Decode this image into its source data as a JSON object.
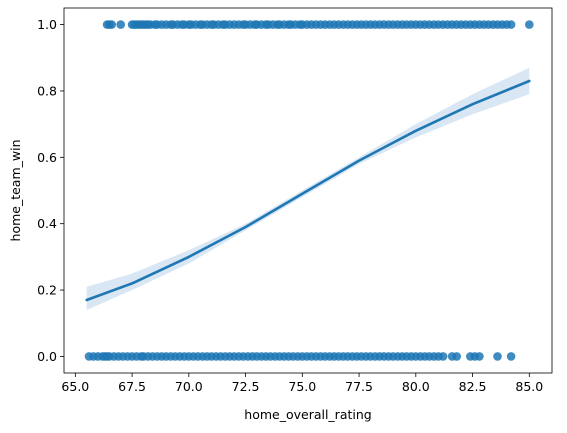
{
  "chart_data": {
    "type": "scatter",
    "title": "",
    "xlabel": "home_overall_rating",
    "ylabel": "home_team_win",
    "xlim": [
      64.5,
      86.0
    ],
    "ylim": [
      -0.05,
      1.05
    ],
    "x_ticks": [
      {
        "value": 65.0,
        "label": "65.0"
      },
      {
        "value": 67.5,
        "label": "67.5"
      },
      {
        "value": 70.0,
        "label": "70.0"
      },
      {
        "value": 72.5,
        "label": "72.5"
      },
      {
        "value": 75.0,
        "label": "75.0"
      },
      {
        "value": 77.5,
        "label": "77.5"
      },
      {
        "value": 80.0,
        "label": "80.0"
      },
      {
        "value": 82.5,
        "label": "82.5"
      },
      {
        "value": 85.0,
        "label": "85.0"
      }
    ],
    "y_ticks": [
      {
        "value": 0.0,
        "label": "0.0"
      },
      {
        "value": 0.2,
        "label": "0.2"
      },
      {
        "value": 0.4,
        "label": "0.4"
      },
      {
        "value": 0.6,
        "label": "0.6"
      },
      {
        "value": 0.8,
        "label": "0.8"
      },
      {
        "value": 1.0,
        "label": "1.0"
      }
    ],
    "grid": false,
    "legend": "none",
    "colors": {
      "points": "#1f77b4",
      "fit_line": "#1f77b4",
      "ci_band": "#cfe0f1"
    },
    "series": [
      {
        "kind": "points",
        "y": 1,
        "x": [
          66.4,
          66.5,
          66.6,
          67.0,
          67.5,
          67.6,
          67.7,
          67.8,
          67.9,
          68.0,
          68.1,
          68.2,
          68.3,
          68.5,
          68.6,
          68.8,
          69.0,
          69.2,
          69.3,
          69.5,
          69.7,
          69.8,
          70.0,
          70.1,
          70.3,
          70.5,
          70.6,
          70.8,
          71.0,
          71.1,
          71.3,
          71.5,
          71.6,
          71.8,
          72.0,
          72.2,
          72.4,
          72.5,
          72.7,
          72.9,
          73.0,
          73.2,
          73.4,
          73.5,
          73.7,
          73.9,
          74.0,
          74.2,
          74.4,
          74.5,
          74.7,
          74.9,
          75.0,
          75.2,
          75.4,
          75.6,
          75.8,
          76.0,
          76.2,
          76.4,
          76.6,
          76.8,
          77.0,
          77.2,
          77.4,
          77.6,
          77.8,
          78.0,
          78.2,
          78.4,
          78.6,
          78.8,
          79.0,
          79.2,
          79.4,
          79.6,
          79.8,
          80.0,
          80.2,
          80.4,
          80.6,
          80.8,
          81.0,
          81.2,
          81.4,
          81.6,
          81.8,
          82.0,
          82.2,
          82.4,
          82.6,
          82.8,
          83.0,
          83.2,
          83.4,
          83.6,
          83.8,
          84.0,
          84.2,
          85.0
        ]
      },
      {
        "kind": "points",
        "y": 0,
        "x": [
          65.6,
          65.8,
          66.0,
          66.2,
          66.3,
          66.4,
          66.5,
          66.7,
          66.9,
          67.1,
          67.3,
          67.5,
          67.7,
          67.9,
          68.0,
          68.2,
          68.4,
          68.6,
          68.8,
          69.0,
          69.2,
          69.4,
          69.6,
          69.8,
          70.0,
          70.2,
          70.4,
          70.6,
          70.8,
          71.0,
          71.2,
          71.4,
          71.6,
          71.8,
          72.0,
          72.2,
          72.4,
          72.6,
          72.8,
          73.0,
          73.2,
          73.4,
          73.6,
          73.8,
          74.0,
          74.2,
          74.4,
          74.6,
          74.8,
          75.0,
          75.2,
          75.4,
          75.6,
          75.8,
          76.0,
          76.2,
          76.4,
          76.6,
          76.8,
          77.0,
          77.2,
          77.4,
          77.6,
          77.8,
          78.0,
          78.2,
          78.4,
          78.6,
          78.8,
          79.0,
          79.2,
          79.4,
          79.6,
          79.8,
          80.0,
          80.2,
          80.4,
          80.6,
          80.8,
          81.0,
          81.2,
          81.6,
          81.8,
          82.4,
          82.6,
          82.8,
          83.6,
          84.2
        ]
      },
      {
        "kind": "logistic_fit",
        "x": [
          65.5,
          67.5,
          70.0,
          72.5,
          75.0,
          77.5,
          80.0,
          82.5,
          85.0
        ],
        "y": [
          0.17,
          0.22,
          0.3,
          0.39,
          0.49,
          0.59,
          0.68,
          0.76,
          0.83
        ],
        "ci_lower": [
          0.14,
          0.2,
          0.28,
          0.38,
          0.48,
          0.58,
          0.66,
          0.73,
          0.79
        ],
        "ci_upper": [
          0.21,
          0.25,
          0.32,
          0.4,
          0.5,
          0.6,
          0.7,
          0.79,
          0.87
        ]
      }
    ]
  }
}
